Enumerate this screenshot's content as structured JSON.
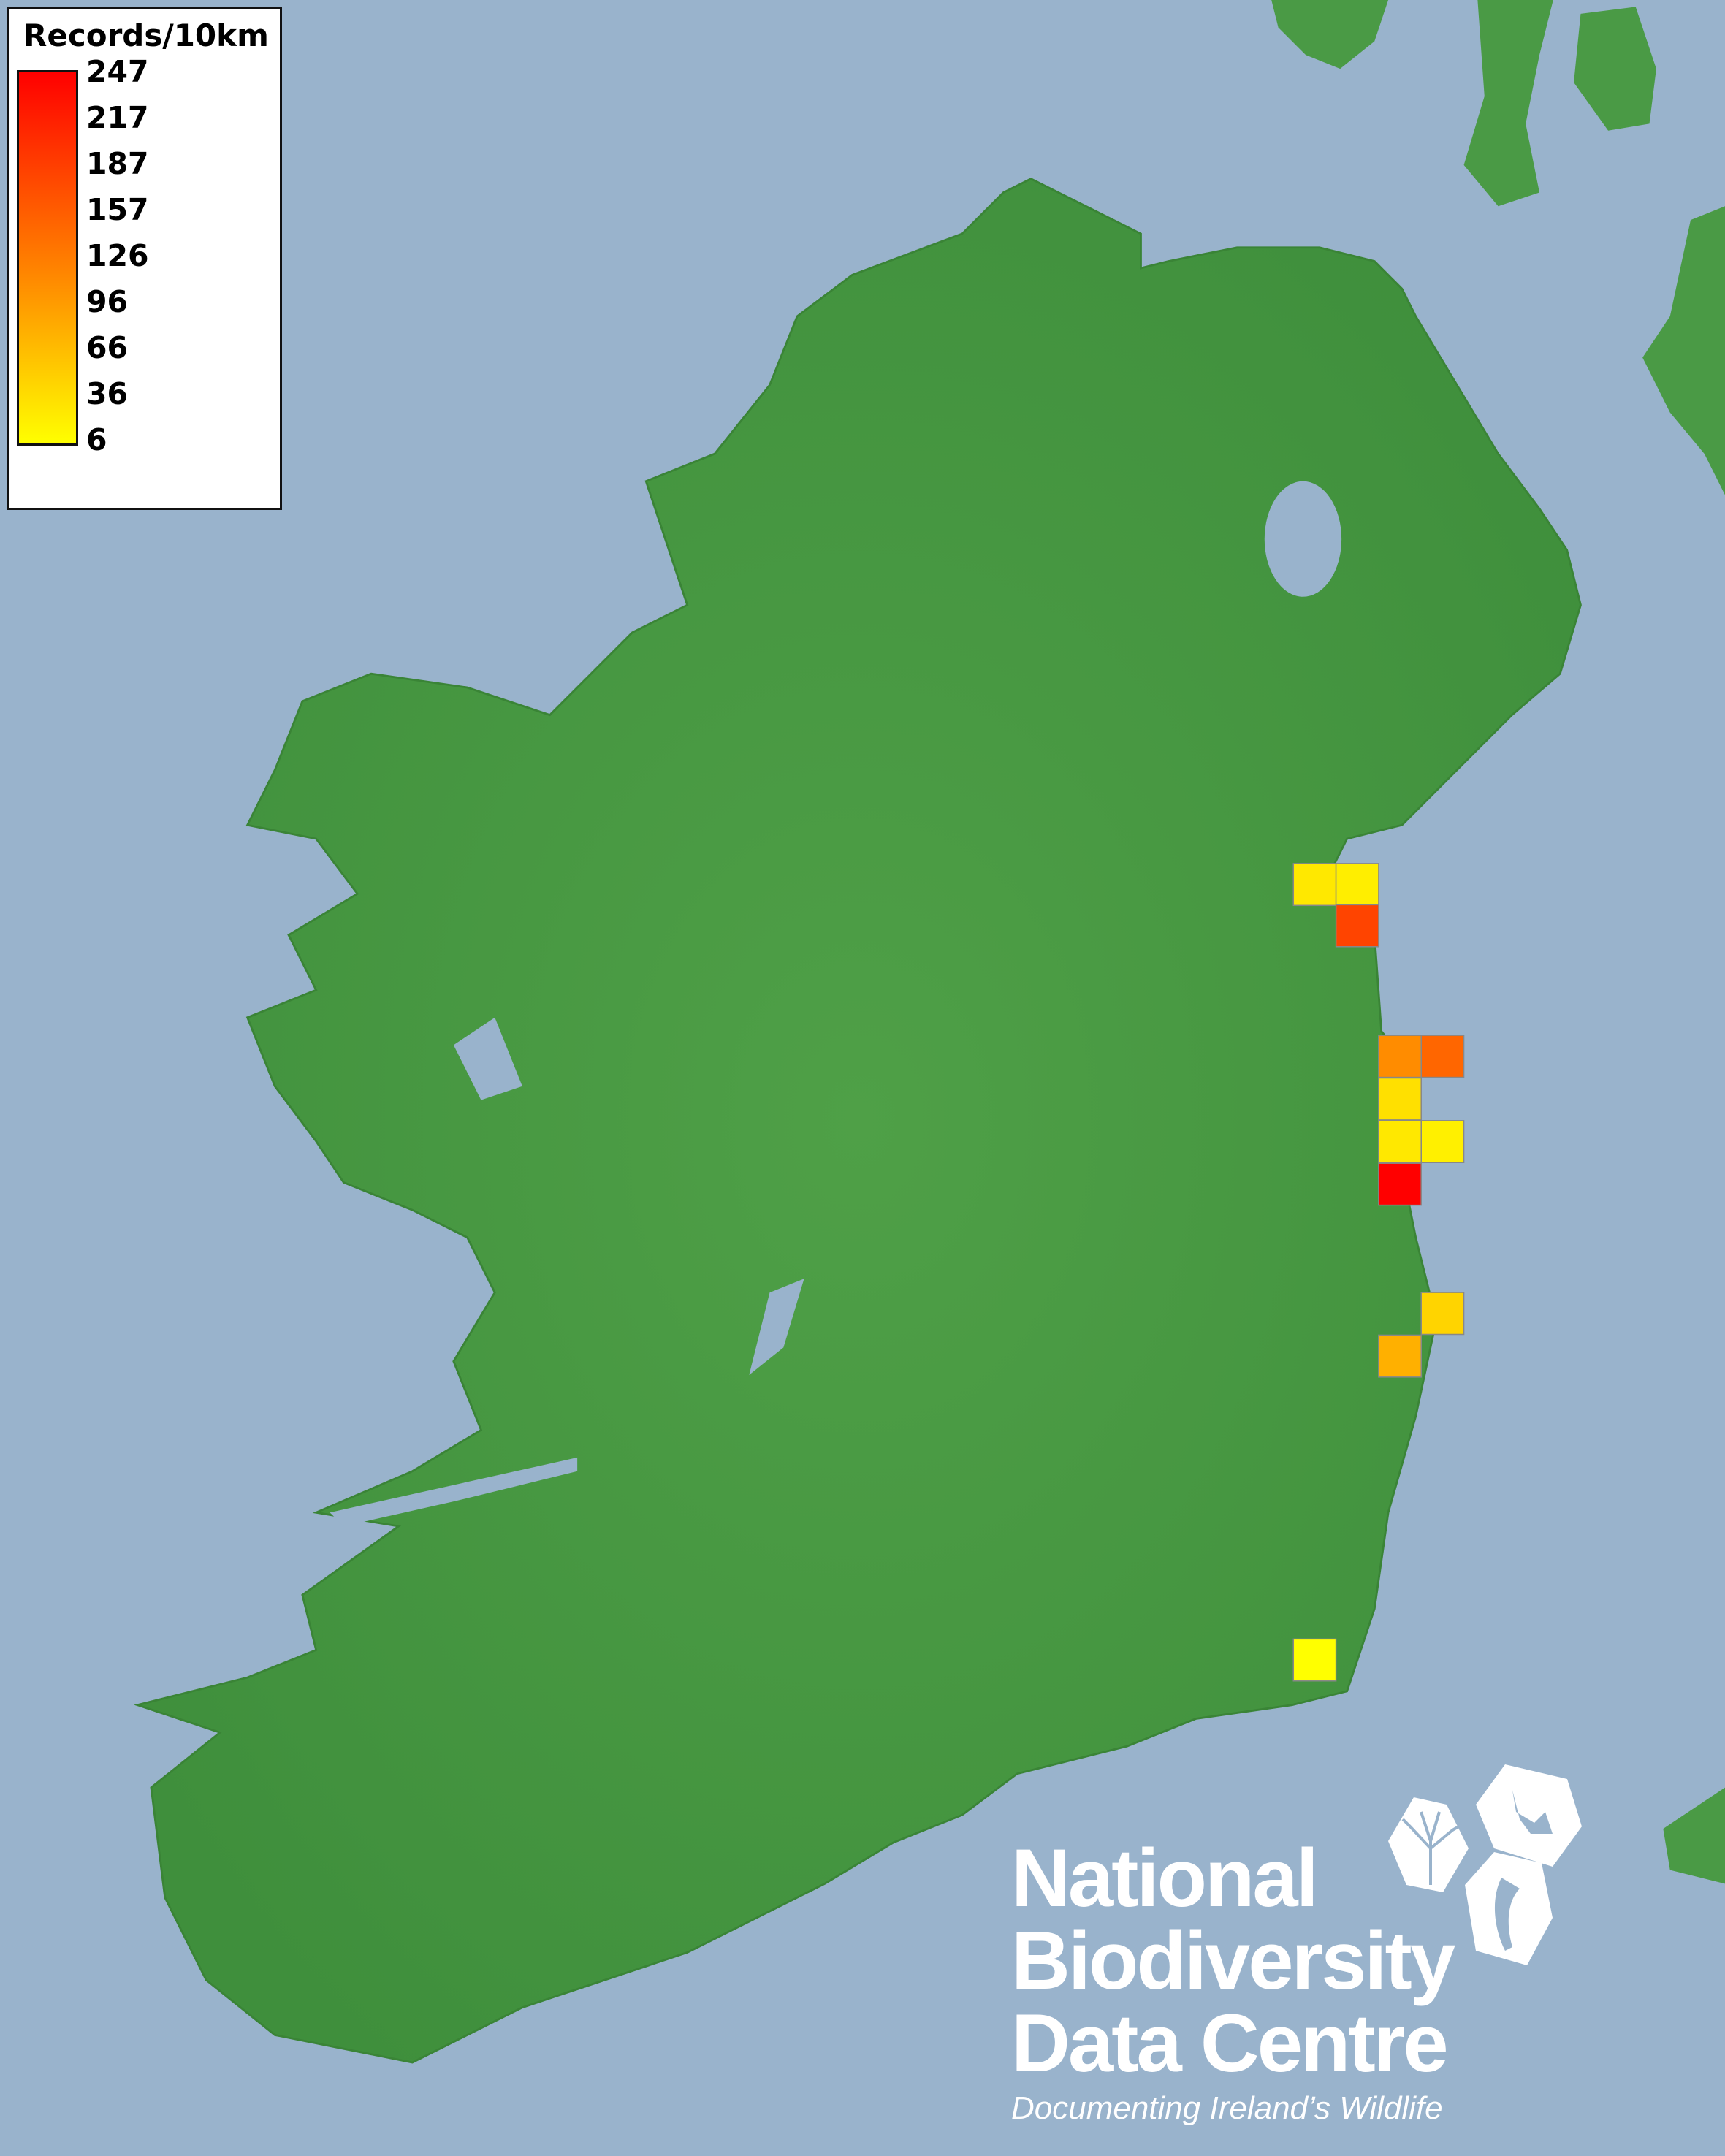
{
  "map": {
    "background_sea_color": "#99B3CC",
    "land_color": "#4A9A45",
    "grid_resolution": "10km"
  },
  "legend": {
    "title": "Records/10km",
    "labels": [
      "247",
      "217",
      "187",
      "157",
      "126",
      "96",
      "66",
      "36",
      "6"
    ],
    "min": 6,
    "max": 247,
    "color_low": "#FFFF00",
    "color_high": "#FF0000"
  },
  "records": [
    {
      "value": 28,
      "color": "#FFE800"
    },
    {
      "value": 22,
      "color": "#FFEE00"
    },
    {
      "value": 183,
      "color": "#FF4400"
    },
    {
      "value": 114,
      "color": "#FF8C00"
    },
    {
      "value": 151,
      "color": "#FF6600"
    },
    {
      "value": 35,
      "color": "#FFE000"
    },
    {
      "value": 28,
      "color": "#FFE800"
    },
    {
      "value": 20,
      "color": "#FFF000"
    },
    {
      "value": 247,
      "color": "#FF0000"
    },
    {
      "value": 47,
      "color": "#FFD400"
    },
    {
      "value": 81,
      "color": "#FFB000"
    },
    {
      "value": 6,
      "color": "#FFFF00"
    }
  ],
  "logo": {
    "line1": "National",
    "line2": "Biodiversity",
    "line3": "Data Centre",
    "tagline": "Documenting Ireland’s Wildlife",
    "icons": [
      "tree-icon",
      "butterfly-icon",
      "seahorse-icon"
    ]
  }
}
